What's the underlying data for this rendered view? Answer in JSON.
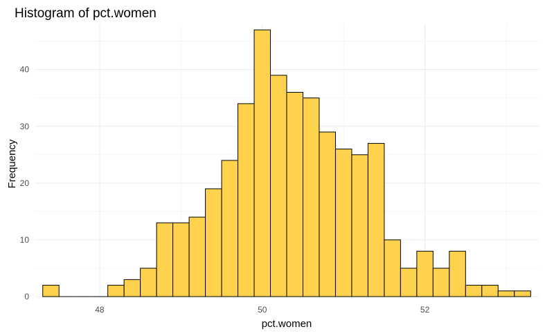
{
  "chart_data": {
    "type": "bar",
    "title": "Histogram of pct.women",
    "xlabel": "pct.women",
    "ylabel": "Frequency",
    "xlim": [
      47.2,
      53.4
    ],
    "ylim": [
      0,
      48
    ],
    "x_ticks": [
      48,
      50,
      52
    ],
    "y_ticks": [
      0,
      10,
      20,
      30,
      40
    ],
    "bin_width": 0.2,
    "bins": [
      {
        "x": 47.4,
        "count": 2
      },
      {
        "x": 47.6,
        "count": 0
      },
      {
        "x": 47.8,
        "count": 0
      },
      {
        "x": 48.0,
        "count": 0
      },
      {
        "x": 48.2,
        "count": 2
      },
      {
        "x": 48.4,
        "count": 3
      },
      {
        "x": 48.6,
        "count": 5
      },
      {
        "x": 48.8,
        "count": 13
      },
      {
        "x": 49.0,
        "count": 13
      },
      {
        "x": 49.2,
        "count": 14
      },
      {
        "x": 49.4,
        "count": 19
      },
      {
        "x": 49.6,
        "count": 24
      },
      {
        "x": 49.8,
        "count": 34
      },
      {
        "x": 50.0,
        "count": 47
      },
      {
        "x": 50.2,
        "count": 39
      },
      {
        "x": 50.4,
        "count": 36
      },
      {
        "x": 50.6,
        "count": 35
      },
      {
        "x": 50.8,
        "count": 29
      },
      {
        "x": 51.0,
        "count": 26
      },
      {
        "x": 51.2,
        "count": 25
      },
      {
        "x": 51.4,
        "count": 27
      },
      {
        "x": 51.6,
        "count": 10
      },
      {
        "x": 51.8,
        "count": 5
      },
      {
        "x": 52.0,
        "count": 8
      },
      {
        "x": 52.2,
        "count": 5
      },
      {
        "x": 52.4,
        "count": 8
      },
      {
        "x": 52.6,
        "count": 2
      },
      {
        "x": 52.8,
        "count": 2
      },
      {
        "x": 53.0,
        "count": 1
      },
      {
        "x": 53.2,
        "count": 1
      }
    ],
    "bar_fill": "#ffd24d",
    "bar_outline": "#000000",
    "grid": true,
    "legend": "none"
  }
}
